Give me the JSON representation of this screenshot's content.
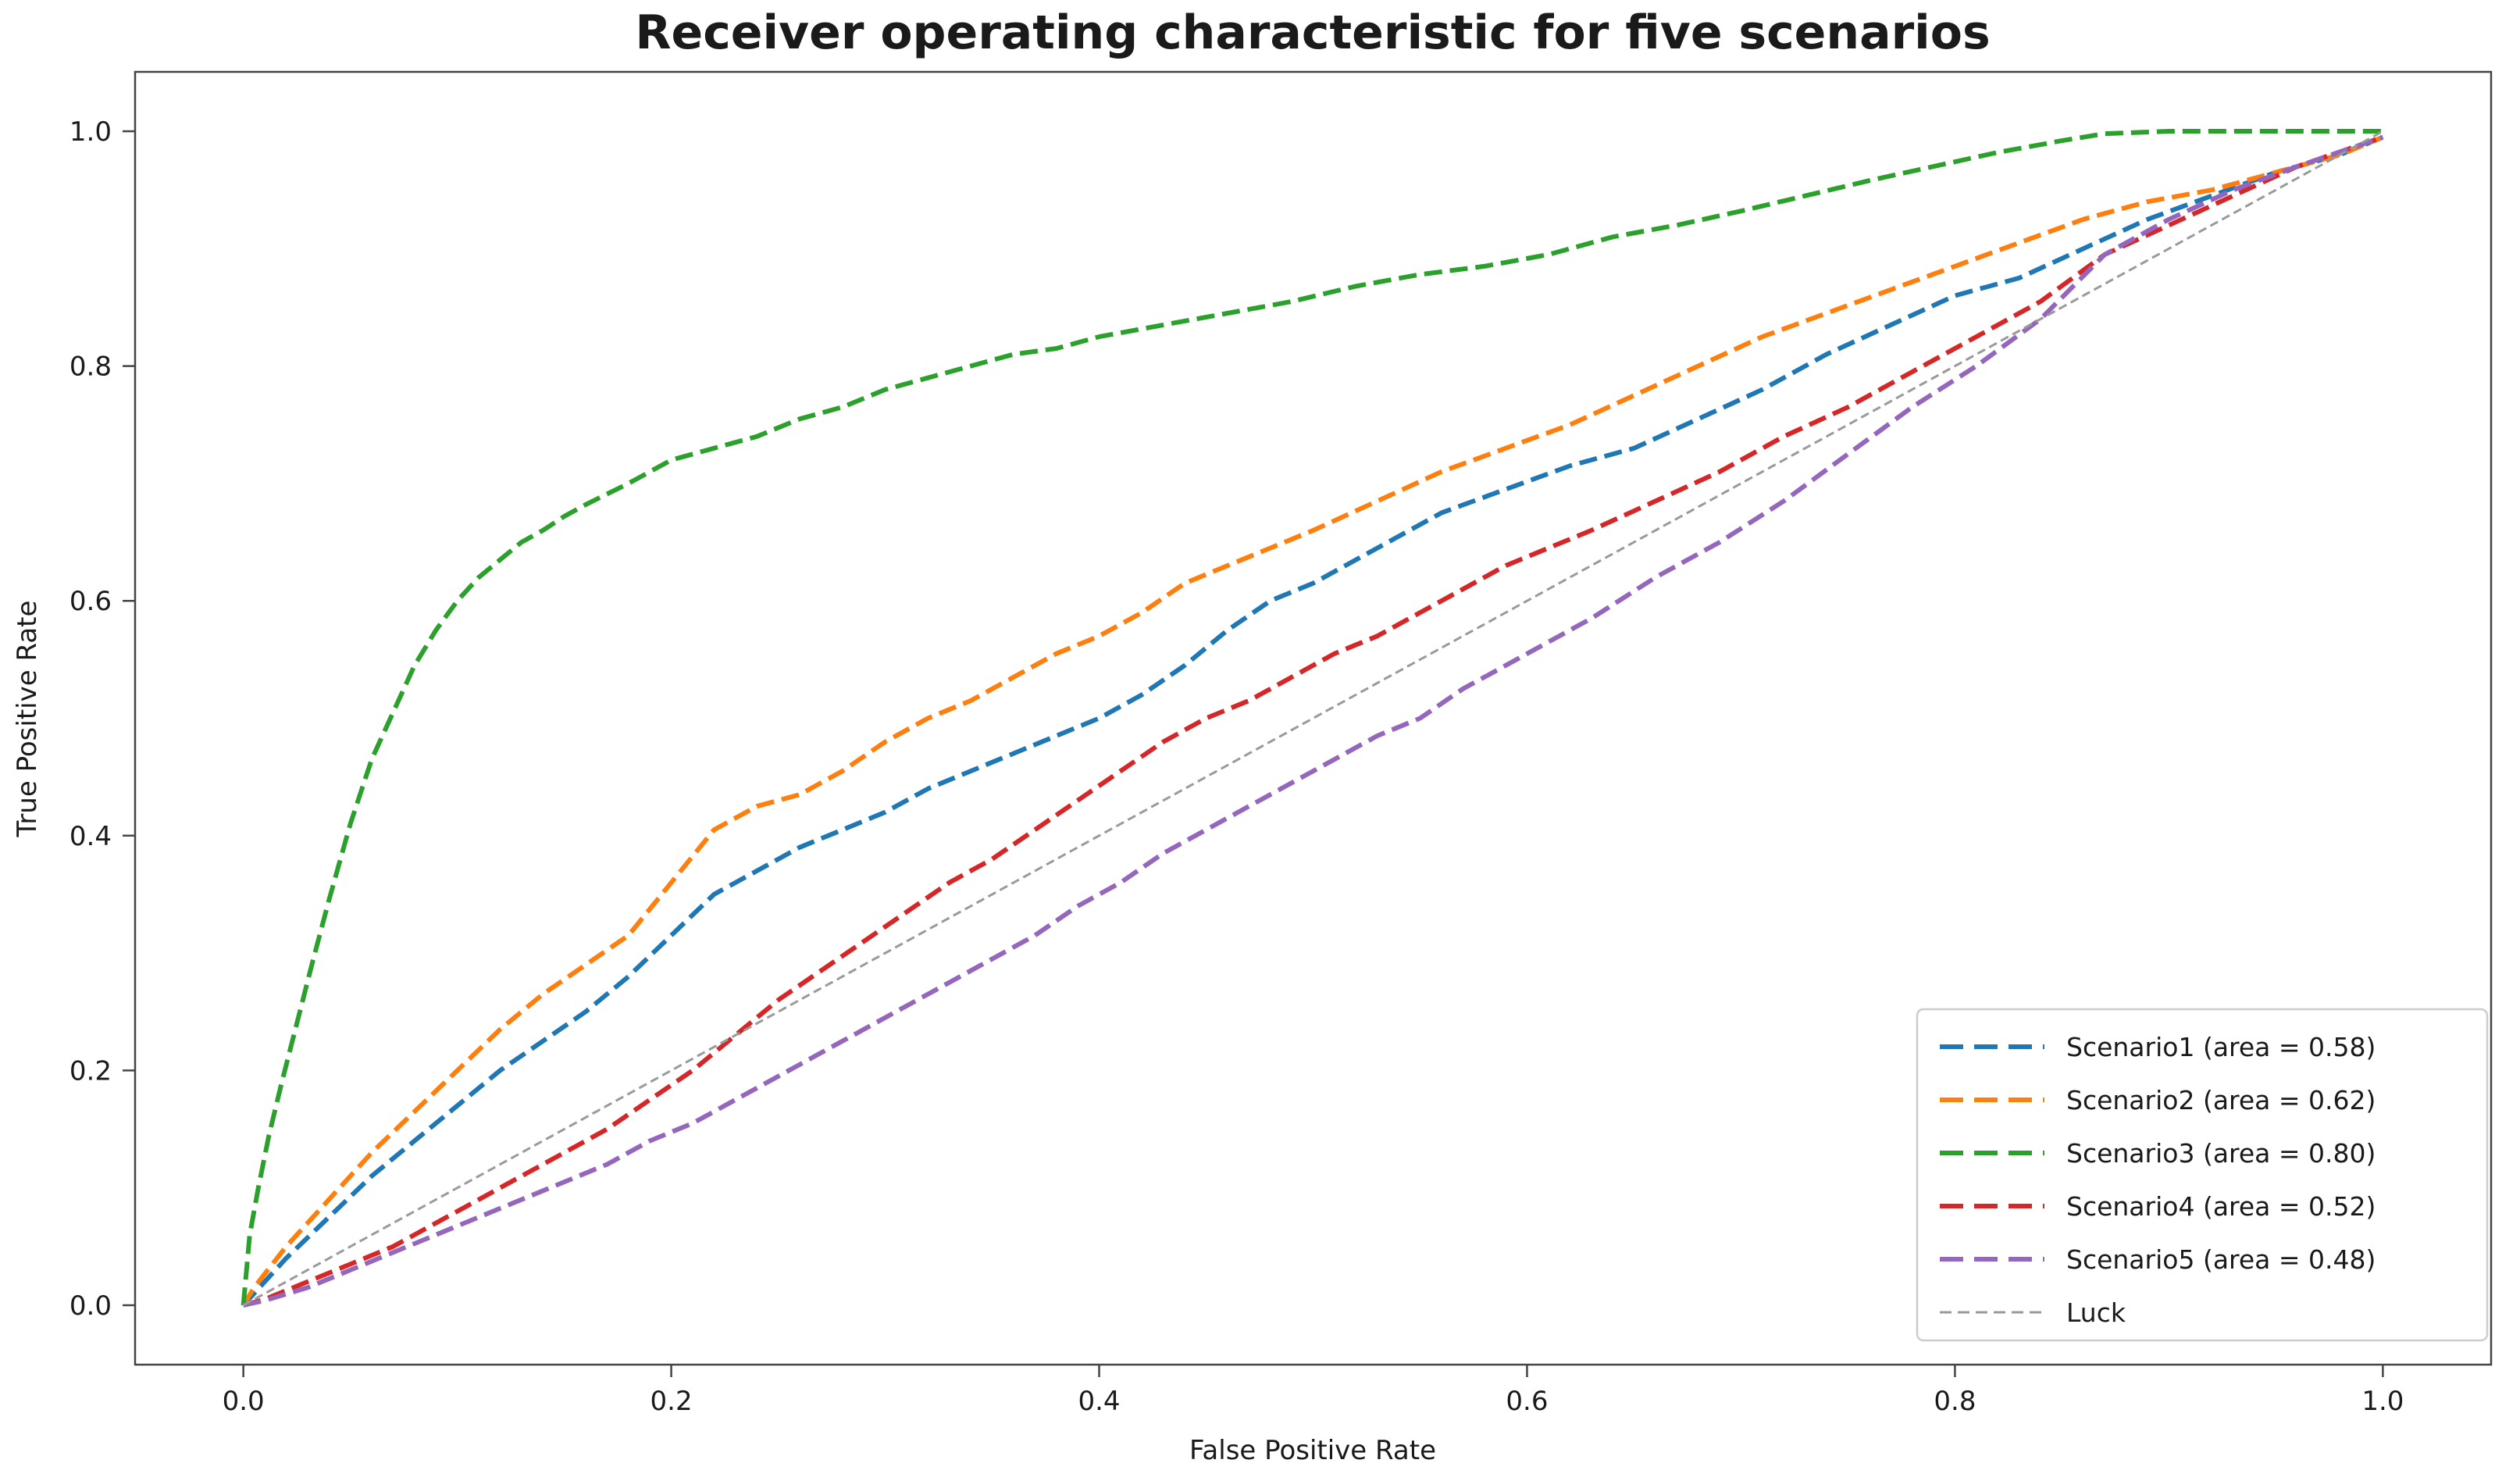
{
  "chart_data": {
    "type": "line",
    "title": "Receiver operating characteristic for five scenarios",
    "xlabel": "False Positive Rate",
    "ylabel": "True Positive Rate",
    "xlim": [
      -0.0506,
      1.0506
    ],
    "ylim": [
      -0.0506,
      1.0506
    ],
    "grid": false,
    "legend_position": "lower right",
    "x_ticks": [
      {
        "value": 0.0,
        "label": "0.0"
      },
      {
        "value": 0.2,
        "label": "0.2"
      },
      {
        "value": 0.4,
        "label": "0.4"
      },
      {
        "value": 0.6,
        "label": "0.6"
      },
      {
        "value": 0.8,
        "label": "0.8"
      },
      {
        "value": 1.0,
        "label": "1.0"
      }
    ],
    "y_ticks": [
      {
        "value": 0.0,
        "label": "0.0"
      },
      {
        "value": 0.2,
        "label": "0.2"
      },
      {
        "value": 0.4,
        "label": "0.4"
      },
      {
        "value": 0.6,
        "label": "0.6"
      },
      {
        "value": 0.8,
        "label": "0.8"
      },
      {
        "value": 1.0,
        "label": "1.0"
      }
    ],
    "series": [
      {
        "name": "Scenario1 (area = 0.58)",
        "auc": 0.58,
        "color": "#1f77b4",
        "width": 6,
        "dash": "23 10",
        "legend_dash": "30 14",
        "points": [
          [
            0,
            0
          ],
          [
            0.005,
            0.01
          ],
          [
            0.02,
            0.04
          ],
          [
            0.04,
            0.075
          ],
          [
            0.06,
            0.11
          ],
          [
            0.08,
            0.14
          ],
          [
            0.1,
            0.17
          ],
          [
            0.12,
            0.2
          ],
          [
            0.14,
            0.225
          ],
          [
            0.16,
            0.25
          ],
          [
            0.18,
            0.28
          ],
          [
            0.2,
            0.315
          ],
          [
            0.22,
            0.35
          ],
          [
            0.24,
            0.37
          ],
          [
            0.26,
            0.39
          ],
          [
            0.28,
            0.405
          ],
          [
            0.3,
            0.42
          ],
          [
            0.32,
            0.44
          ],
          [
            0.34,
            0.455
          ],
          [
            0.36,
            0.47
          ],
          [
            0.38,
            0.485
          ],
          [
            0.4,
            0.5
          ],
          [
            0.42,
            0.52
          ],
          [
            0.44,
            0.545
          ],
          [
            0.46,
            0.575
          ],
          [
            0.48,
            0.6
          ],
          [
            0.5,
            0.615
          ],
          [
            0.53,
            0.645
          ],
          [
            0.56,
            0.675
          ],
          [
            0.59,
            0.695
          ],
          [
            0.62,
            0.715
          ],
          [
            0.65,
            0.73
          ],
          [
            0.68,
            0.755
          ],
          [
            0.71,
            0.78
          ],
          [
            0.74,
            0.81
          ],
          [
            0.77,
            0.835
          ],
          [
            0.8,
            0.86
          ],
          [
            0.83,
            0.875
          ],
          [
            0.86,
            0.9
          ],
          [
            0.89,
            0.925
          ],
          [
            0.92,
            0.945
          ],
          [
            0.95,
            0.965
          ],
          [
            0.98,
            0.98
          ],
          [
            1.0,
            0.995
          ]
        ]
      },
      {
        "name": "Scenario2 (area = 0.62)",
        "auc": 0.62,
        "color": "#ff7f0e",
        "width": 6,
        "dash": "23 10",
        "legend_dash": "30 14",
        "points": [
          [
            0,
            0
          ],
          [
            0.005,
            0.015
          ],
          [
            0.02,
            0.05
          ],
          [
            0.04,
            0.09
          ],
          [
            0.06,
            0.13
          ],
          [
            0.08,
            0.165
          ],
          [
            0.1,
            0.2
          ],
          [
            0.12,
            0.235
          ],
          [
            0.14,
            0.265
          ],
          [
            0.16,
            0.29
          ],
          [
            0.18,
            0.315
          ],
          [
            0.2,
            0.36
          ],
          [
            0.22,
            0.405
          ],
          [
            0.24,
            0.425
          ],
          [
            0.26,
            0.435
          ],
          [
            0.28,
            0.455
          ],
          [
            0.3,
            0.48
          ],
          [
            0.32,
            0.5
          ],
          [
            0.34,
            0.515
          ],
          [
            0.36,
            0.535
          ],
          [
            0.38,
            0.555
          ],
          [
            0.4,
            0.57
          ],
          [
            0.42,
            0.59
          ],
          [
            0.44,
            0.615
          ],
          [
            0.46,
            0.63
          ],
          [
            0.48,
            0.645
          ],
          [
            0.5,
            0.66
          ],
          [
            0.53,
            0.685
          ],
          [
            0.56,
            0.71
          ],
          [
            0.59,
            0.73
          ],
          [
            0.62,
            0.75
          ],
          [
            0.65,
            0.775
          ],
          [
            0.68,
            0.8
          ],
          [
            0.71,
            0.825
          ],
          [
            0.74,
            0.845
          ],
          [
            0.77,
            0.865
          ],
          [
            0.8,
            0.885
          ],
          [
            0.83,
            0.905
          ],
          [
            0.86,
            0.925
          ],
          [
            0.89,
            0.94
          ],
          [
            0.92,
            0.95
          ],
          [
            0.95,
            0.965
          ],
          [
            0.98,
            0.98
          ],
          [
            1.0,
            0.995
          ]
        ]
      },
      {
        "name": "Scenario3 (area = 0.80)",
        "auc": 0.8,
        "color": "#2ca02c",
        "width": 6,
        "dash": "23 10",
        "legend_dash": "30 14",
        "points": [
          [
            0,
            0
          ],
          [
            0.003,
            0.06
          ],
          [
            0.007,
            0.1
          ],
          [
            0.012,
            0.145
          ],
          [
            0.018,
            0.19
          ],
          [
            0.025,
            0.24
          ],
          [
            0.032,
            0.29
          ],
          [
            0.04,
            0.345
          ],
          [
            0.05,
            0.41
          ],
          [
            0.06,
            0.465
          ],
          [
            0.07,
            0.505
          ],
          [
            0.08,
            0.545
          ],
          [
            0.09,
            0.575
          ],
          [
            0.1,
            0.6
          ],
          [
            0.11,
            0.62
          ],
          [
            0.12,
            0.635
          ],
          [
            0.13,
            0.65
          ],
          [
            0.14,
            0.66
          ],
          [
            0.15,
            0.672
          ],
          [
            0.16,
            0.682
          ],
          [
            0.18,
            0.7
          ],
          [
            0.2,
            0.72
          ],
          [
            0.22,
            0.73
          ],
          [
            0.24,
            0.74
          ],
          [
            0.26,
            0.755
          ],
          [
            0.28,
            0.765
          ],
          [
            0.3,
            0.78
          ],
          [
            0.32,
            0.79
          ],
          [
            0.34,
            0.8
          ],
          [
            0.36,
            0.81
          ],
          [
            0.38,
            0.815
          ],
          [
            0.4,
            0.825
          ],
          [
            0.43,
            0.835
          ],
          [
            0.46,
            0.845
          ],
          [
            0.49,
            0.855
          ],
          [
            0.52,
            0.868
          ],
          [
            0.55,
            0.878
          ],
          [
            0.58,
            0.885
          ],
          [
            0.61,
            0.895
          ],
          [
            0.64,
            0.91
          ],
          [
            0.67,
            0.92
          ],
          [
            0.7,
            0.932
          ],
          [
            0.73,
            0.945
          ],
          [
            0.76,
            0.958
          ],
          [
            0.79,
            0.97
          ],
          [
            0.82,
            0.982
          ],
          [
            0.85,
            0.992
          ],
          [
            0.87,
            0.998
          ],
          [
            0.9,
            1.0
          ],
          [
            0.95,
            1.0
          ],
          [
            1.0,
            1.0
          ]
        ]
      },
      {
        "name": "Scenario4 (area = 0.52)",
        "auc": 0.52,
        "color": "#d62728",
        "width": 6,
        "dash": "23 10",
        "legend_dash": "30 14",
        "points": [
          [
            0,
            0
          ],
          [
            0.01,
            0.005
          ],
          [
            0.03,
            0.02
          ],
          [
            0.05,
            0.035
          ],
          [
            0.07,
            0.05
          ],
          [
            0.09,
            0.07
          ],
          [
            0.11,
            0.09
          ],
          [
            0.13,
            0.11
          ],
          [
            0.15,
            0.13
          ],
          [
            0.17,
            0.15
          ],
          [
            0.19,
            0.175
          ],
          [
            0.21,
            0.2
          ],
          [
            0.23,
            0.23
          ],
          [
            0.25,
            0.26
          ],
          [
            0.27,
            0.285
          ],
          [
            0.29,
            0.31
          ],
          [
            0.31,
            0.335
          ],
          [
            0.33,
            0.36
          ],
          [
            0.35,
            0.38
          ],
          [
            0.37,
            0.405
          ],
          [
            0.39,
            0.43
          ],
          [
            0.41,
            0.455
          ],
          [
            0.43,
            0.48
          ],
          [
            0.45,
            0.5
          ],
          [
            0.47,
            0.515
          ],
          [
            0.49,
            0.535
          ],
          [
            0.51,
            0.555
          ],
          [
            0.53,
            0.57
          ],
          [
            0.55,
            0.59
          ],
          [
            0.57,
            0.61
          ],
          [
            0.59,
            0.63
          ],
          [
            0.61,
            0.645
          ],
          [
            0.63,
            0.66
          ],
          [
            0.66,
            0.685
          ],
          [
            0.69,
            0.71
          ],
          [
            0.72,
            0.74
          ],
          [
            0.75,
            0.765
          ],
          [
            0.78,
            0.795
          ],
          [
            0.81,
            0.825
          ],
          [
            0.84,
            0.855
          ],
          [
            0.87,
            0.895
          ],
          [
            0.9,
            0.92
          ],
          [
            0.93,
            0.945
          ],
          [
            0.96,
            0.97
          ],
          [
            1.0,
            0.995
          ]
        ]
      },
      {
        "name": "Scenario5 (area = 0.48)",
        "auc": 0.48,
        "color": "#9467bd",
        "width": 6,
        "dash": "23 10",
        "legend_dash": "30 14",
        "points": [
          [
            0,
            0
          ],
          [
            0.01,
            0.004
          ],
          [
            0.03,
            0.015
          ],
          [
            0.05,
            0.03
          ],
          [
            0.07,
            0.045
          ],
          [
            0.09,
            0.06
          ],
          [
            0.11,
            0.075
          ],
          [
            0.13,
            0.09
          ],
          [
            0.15,
            0.105
          ],
          [
            0.17,
            0.12
          ],
          [
            0.19,
            0.14
          ],
          [
            0.21,
            0.155
          ],
          [
            0.23,
            0.175
          ],
          [
            0.25,
            0.195
          ],
          [
            0.27,
            0.215
          ],
          [
            0.29,
            0.235
          ],
          [
            0.31,
            0.255
          ],
          [
            0.33,
            0.275
          ],
          [
            0.35,
            0.295
          ],
          [
            0.37,
            0.315
          ],
          [
            0.39,
            0.34
          ],
          [
            0.41,
            0.36
          ],
          [
            0.43,
            0.385
          ],
          [
            0.45,
            0.405
          ],
          [
            0.47,
            0.425
          ],
          [
            0.49,
            0.445
          ],
          [
            0.51,
            0.465
          ],
          [
            0.53,
            0.485
          ],
          [
            0.55,
            0.5
          ],
          [
            0.57,
            0.525
          ],
          [
            0.59,
            0.545
          ],
          [
            0.61,
            0.565
          ],
          [
            0.63,
            0.585
          ],
          [
            0.66,
            0.62
          ],
          [
            0.69,
            0.65
          ],
          [
            0.72,
            0.685
          ],
          [
            0.75,
            0.725
          ],
          [
            0.78,
            0.765
          ],
          [
            0.81,
            0.8
          ],
          [
            0.84,
            0.84
          ],
          [
            0.87,
            0.895
          ],
          [
            0.9,
            0.925
          ],
          [
            0.93,
            0.95
          ],
          [
            0.96,
            0.97
          ],
          [
            1.0,
            0.995
          ]
        ]
      },
      {
        "name": "Luck",
        "color": "#9a9a9a",
        "width": 3,
        "dash": "11 6",
        "legend_dash": "15 8",
        "points": [
          [
            0,
            0
          ],
          [
            1,
            1
          ]
        ]
      }
    ]
  },
  "colors": {
    "spine": "#444444",
    "tick_text": "#1a1a1a",
    "legend_border": "#cccccc",
    "legend_bg": "#ffffff",
    "background": "#ffffff"
  }
}
